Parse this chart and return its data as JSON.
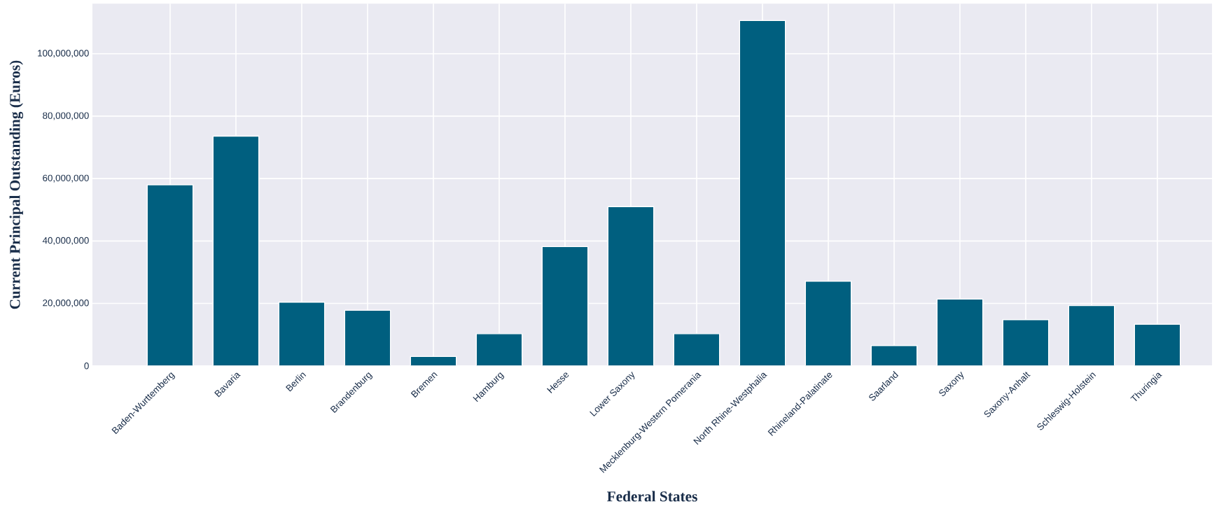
{
  "chart_data": {
    "type": "bar",
    "xlabel": "Federal States",
    "ylabel": "Current Principal Outstanding (Euros)",
    "categories": [
      "Baden-Wurttemberg",
      "Bavaria",
      "Berlin",
      "Brandenburg",
      "Bremen",
      "Hamburg",
      "Hesse",
      "Lower Saxony",
      "Mecklenburg-Western Pomerania",
      "North Rhine-Westphalia",
      "Rhineland-Palatinate",
      "Saarland",
      "Saxony",
      "Saxony-Anhalt",
      "Schleswig-Holstein",
      "Thuringia"
    ],
    "values": [
      58000000,
      73600000,
      20400000,
      17800000,
      3000000,
      10300000,
      38200000,
      51000000,
      10300000,
      110600000,
      27100000,
      6500000,
      21400000,
      14800000,
      19300000,
      13300000
    ],
    "color": "#005f7f",
    "ylim": [
      0,
      116000000
    ],
    "yticks": [
      0,
      {
        "value": 20000000,
        "label": "20,000,000"
      },
      {
        "value": 40000000,
        "label": "40,000,000"
      },
      {
        "value": 60000000,
        "label": "60,000,000"
      },
      {
        "value": 80000000,
        "label": "80,000,000"
      },
      {
        "value": 100000000,
        "label": "100,000,000"
      }
    ],
    "grid": true
  }
}
